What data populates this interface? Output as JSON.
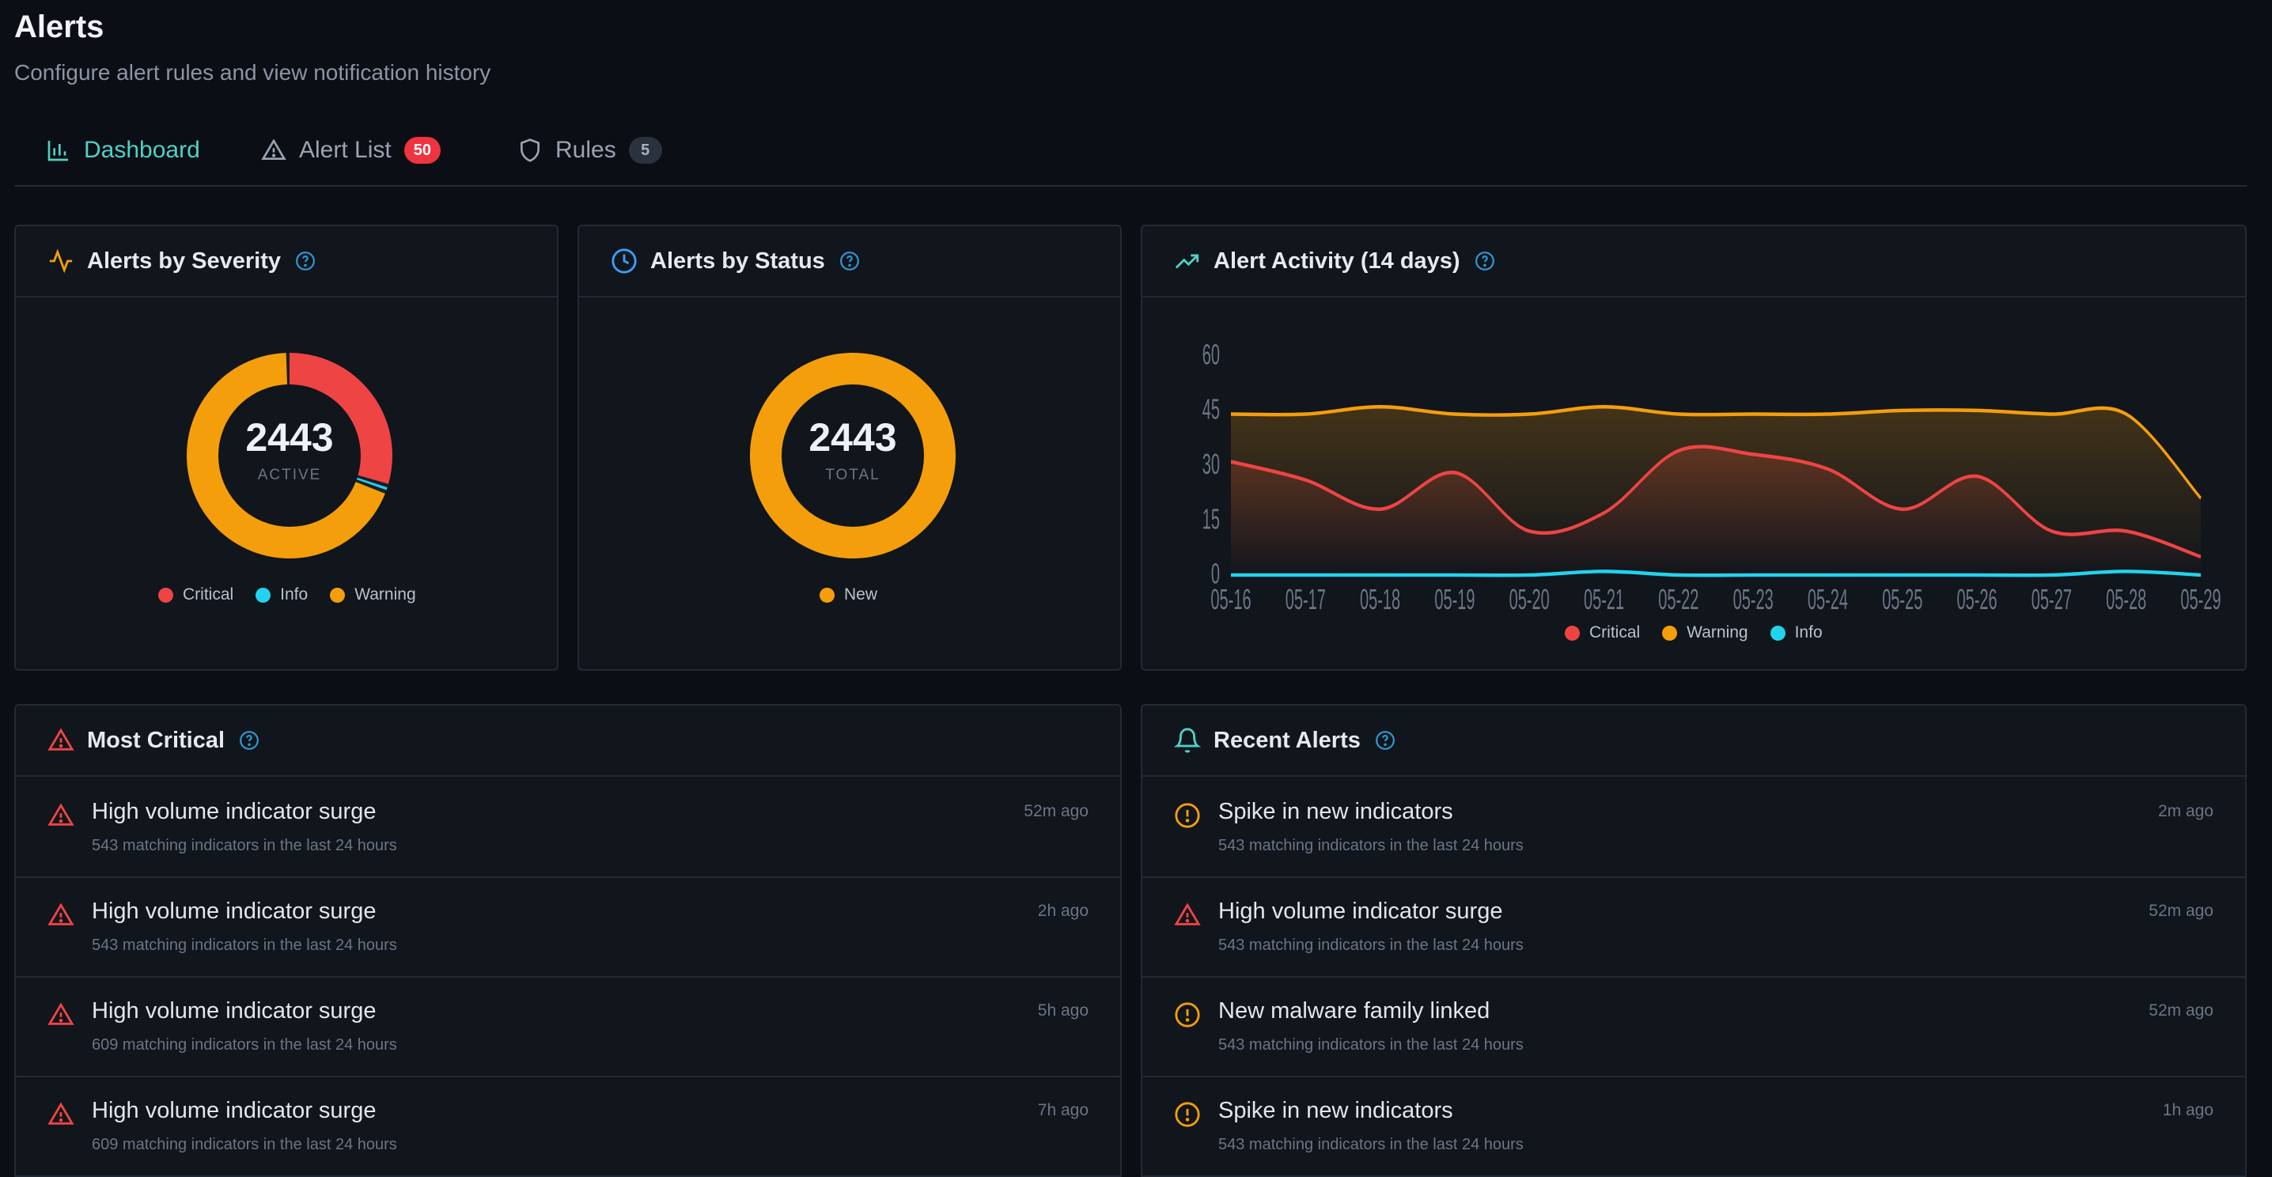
{
  "header": {
    "title": "Alerts",
    "subtitle": "Configure alert rules and view notification history"
  },
  "tabs": [
    {
      "label": "Dashboard",
      "icon": "bar-chart-icon",
      "active": true
    },
    {
      "label": "Alert List",
      "icon": "warning-triangle-icon",
      "badge": "50"
    },
    {
      "label": "Rules",
      "icon": "shield-icon",
      "badge": "5"
    }
  ],
  "severity_card": {
    "title": "Alerts by Severity",
    "total": "2443",
    "total_label": "ACTIVE",
    "legend": [
      {
        "label": "Critical",
        "color": "#ef4444"
      },
      {
        "label": "Info",
        "color": "#22d3ee"
      },
      {
        "label": "Warning",
        "color": "#f59e0b"
      }
    ]
  },
  "status_card": {
    "title": "Alerts by Status",
    "total": "2443",
    "total_label": "TOTAL",
    "legend": [
      {
        "label": "New",
        "color": "#f59e0b"
      }
    ]
  },
  "activity_card": {
    "title": "Alert Activity (14 days)",
    "legend": [
      {
        "label": "Critical",
        "color": "#ef4444"
      },
      {
        "label": "Warning",
        "color": "#f59e0b"
      },
      {
        "label": "Info",
        "color": "#22d3ee"
      }
    ]
  },
  "chart_data": {
    "type": "line",
    "x": [
      "05-16",
      "05-17",
      "05-18",
      "05-19",
      "05-20",
      "05-21",
      "05-22",
      "05-23",
      "05-24",
      "05-25",
      "05-26",
      "05-27",
      "05-28",
      "05-29"
    ],
    "yticks": [
      0,
      15,
      30,
      45,
      60
    ],
    "ylim": [
      0,
      60
    ],
    "series": [
      {
        "name": "Critical",
        "color": "#ef4444",
        "values": [
          31,
          26,
          18,
          28,
          12,
          17,
          34,
          33,
          29,
          18,
          27,
          12,
          12,
          5
        ]
      },
      {
        "name": "Warning",
        "color": "#f59e0b",
        "values": [
          44,
          44,
          46,
          44,
          44,
          46,
          44,
          44,
          44,
          45,
          45,
          44,
          44,
          21
        ]
      },
      {
        "name": "Info",
        "color": "#22d3ee",
        "values": [
          0,
          0,
          0,
          0,
          0,
          1,
          0,
          0,
          0,
          0,
          0,
          0,
          1,
          0
        ]
      }
    ],
    "legend_position": "bottom",
    "grid": false
  },
  "donuts": {
    "severity": [
      {
        "label": "Critical",
        "value": 0.3,
        "color": "#ef4444"
      },
      {
        "label": "Info",
        "value": 0.01,
        "color": "#22d3ee"
      },
      {
        "label": "Warning",
        "value": 0.69,
        "color": "#f59e0b"
      }
    ],
    "status": [
      {
        "label": "New",
        "value": 1.0,
        "color": "#f59e0b"
      }
    ]
  },
  "most_critical": {
    "title": "Most Critical",
    "items": [
      {
        "title": "High volume indicator surge",
        "desc": "543 matching indicators in the last 24 hours",
        "time": "52m ago",
        "severity": "critical"
      },
      {
        "title": "High volume indicator surge",
        "desc": "543 matching indicators in the last 24 hours",
        "time": "2h ago",
        "severity": "critical"
      },
      {
        "title": "High volume indicator surge",
        "desc": "609 matching indicators in the last 24 hours",
        "time": "5h ago",
        "severity": "critical"
      },
      {
        "title": "High volume indicator surge",
        "desc": "609 matching indicators in the last 24 hours",
        "time": "7h ago",
        "severity": "critical"
      }
    ]
  },
  "recent_alerts": {
    "title": "Recent Alerts",
    "items": [
      {
        "title": "Spike in new indicators",
        "desc": "543 matching indicators in the last 24 hours",
        "time": "2m ago",
        "severity": "warning"
      },
      {
        "title": "High volume indicator surge",
        "desc": "543 matching indicators in the last 24 hours",
        "time": "52m ago",
        "severity": "critical"
      },
      {
        "title": "New malware family linked",
        "desc": "543 matching indicators in the last 24 hours",
        "time": "52m ago",
        "severity": "warning"
      },
      {
        "title": "Spike in new indicators",
        "desc": "543 matching indicators in the last 24 hours",
        "time": "1h ago",
        "severity": "warning"
      }
    ]
  }
}
